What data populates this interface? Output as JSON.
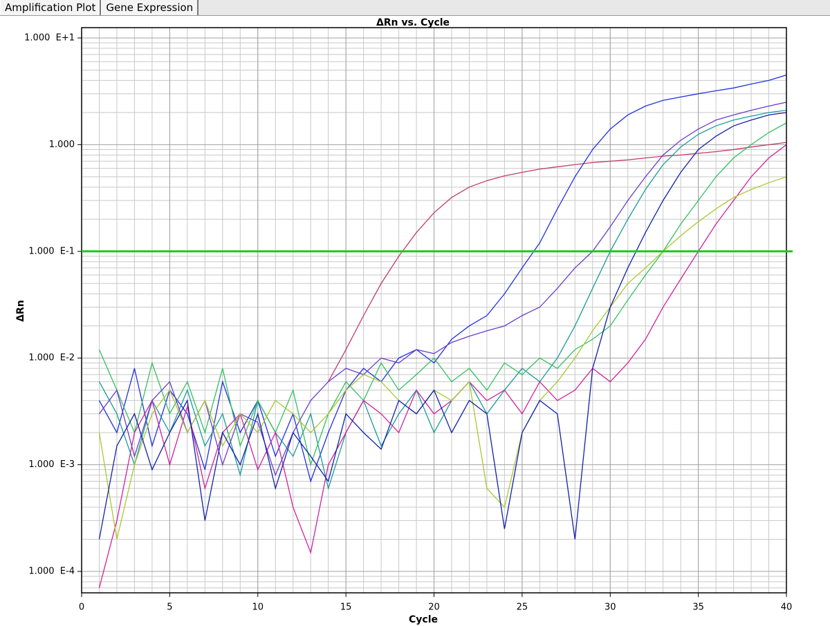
{
  "tabs": [
    "Amplification Plot",
    "Gene Expression"
  ],
  "chart_data": {
    "type": "line",
    "title": "ΔRn vs. Cycle",
    "x_label": "Cycle",
    "y_label": "ΔRn",
    "log_y": true,
    "grid": true,
    "minor_grid": true,
    "threshold": 0.1,
    "threshold_color": "#1ec81e",
    "xlim": [
      0,
      40
    ],
    "xticks": [
      0,
      5,
      10,
      15,
      20,
      25,
      30,
      35,
      40
    ],
    "ylim": [
      6.3e-05,
      12.5
    ],
    "yticks": [
      {
        "value": 0.0001,
        "label": "1.000  E-4"
      },
      {
        "value": 0.001,
        "label": "1.000  E-3"
      },
      {
        "value": 0.01,
        "label": "1.000  E-2"
      },
      {
        "value": 0.1,
        "label": "1.000  E-1"
      },
      {
        "value": 1,
        "label": "1.000"
      },
      {
        "value": 10,
        "label": "1.000  E+1"
      }
    ],
    "x": [
      1,
      2,
      3,
      4,
      5,
      6,
      7,
      8,
      9,
      10,
      11,
      12,
      13,
      14,
      15,
      16,
      17,
      18,
      19,
      20,
      21,
      22,
      23,
      24,
      25,
      26,
      27,
      28,
      29,
      30,
      31,
      32,
      33,
      34,
      35,
      36,
      37,
      38,
      39,
      40
    ],
    "series": [
      {
        "color": "#c03a6a",
        "values": [
          null,
          null,
          null,
          null,
          null,
          null,
          null,
          null,
          null,
          null,
          null,
          null,
          null,
          0.006,
          0.012,
          0.025,
          0.05,
          0.09,
          0.15,
          0.23,
          0.32,
          0.4,
          0.46,
          0.51,
          0.55,
          0.59,
          0.62,
          0.65,
          0.68,
          0.7,
          0.72,
          0.75,
          0.78,
          0.8,
          0.83,
          0.86,
          0.9,
          0.95,
          1.0,
          1.05
        ]
      },
      {
        "color": "#2030e0",
        "values": [
          0.004,
          0.002,
          0.008,
          0.0015,
          0.005,
          0.003,
          0.0009,
          0.006,
          0.002,
          0.004,
          0.0012,
          0.003,
          0.0007,
          0.002,
          0.005,
          0.008,
          0.006,
          0.01,
          0.012,
          0.009,
          0.015,
          0.02,
          0.025,
          0.04,
          0.07,
          0.12,
          0.25,
          0.5,
          0.9,
          1.4,
          1.9,
          2.3,
          2.6,
          2.8,
          3.0,
          3.2,
          3.4,
          3.7,
          4.0,
          4.5
        ]
      },
      {
        "color": "#1a9a9a",
        "values": [
          0.006,
          0.003,
          0.001,
          0.004,
          0.002,
          0.005,
          0.0015,
          0.003,
          0.0008,
          0.004,
          0.002,
          0.0012,
          0.003,
          0.0006,
          0.002,
          0.004,
          0.0015,
          0.003,
          0.005,
          0.002,
          0.004,
          0.006,
          0.003,
          0.005,
          0.008,
          0.006,
          0.01,
          0.02,
          0.045,
          0.1,
          0.2,
          0.38,
          0.65,
          0.95,
          1.25,
          1.5,
          1.7,
          1.85,
          2.0,
          2.1
        ]
      },
      {
        "color": "#30c060",
        "values": [
          0.012,
          0.005,
          0.002,
          0.009,
          0.003,
          0.006,
          0.002,
          0.008,
          0.0015,
          0.004,
          0.002,
          0.005,
          0.001,
          0.003,
          0.006,
          0.004,
          0.009,
          0.005,
          0.007,
          0.01,
          0.006,
          0.008,
          0.005,
          0.009,
          0.007,
          0.01,
          0.008,
          0.012,
          0.015,
          0.02,
          0.035,
          0.06,
          0.1,
          0.18,
          0.3,
          0.5,
          0.75,
          1.0,
          1.3,
          1.6
        ]
      },
      {
        "color": "#d020a0",
        "values": [
          7e-05,
          0.0003,
          0.002,
          0.004,
          0.001,
          0.0035,
          0.0006,
          0.002,
          0.003,
          0.0009,
          0.002,
          0.0004,
          0.00015,
          0.001,
          0.002,
          0.004,
          0.003,
          0.002,
          0.005,
          0.003,
          0.004,
          0.006,
          0.004,
          0.005,
          0.003,
          0.006,
          0.004,
          0.005,
          0.008,
          0.006,
          0.009,
          0.015,
          0.03,
          0.055,
          0.1,
          0.18,
          0.3,
          0.5,
          0.75,
          1.0
        ]
      },
      {
        "color": "#6a3cc8",
        "values": [
          0.003,
          0.005,
          0.0012,
          0.004,
          0.006,
          0.002,
          0.004,
          0.001,
          0.003,
          0.0025,
          0.0008,
          0.002,
          0.004,
          0.006,
          0.008,
          0.007,
          0.01,
          0.009,
          0.012,
          0.011,
          0.014,
          0.016,
          0.018,
          0.02,
          0.025,
          0.03,
          0.045,
          0.07,
          0.1,
          0.17,
          0.3,
          0.5,
          0.8,
          1.1,
          1.4,
          1.7,
          1.9,
          2.1,
          2.3,
          2.5
        ]
      },
      {
        "color": "#a8c830",
        "values": [
          0.002,
          0.0002,
          0.001,
          0.003,
          0.005,
          0.002,
          0.004,
          0.0015,
          0.003,
          0.002,
          0.004,
          0.003,
          0.002,
          0.003,
          0.005,
          0.007,
          0.006,
          0.004,
          0.003,
          0.005,
          0.004,
          0.006,
          0.0006,
          0.0004,
          0.002,
          0.004,
          0.006,
          0.01,
          0.018,
          0.03,
          0.05,
          0.07,
          0.1,
          0.14,
          0.19,
          0.25,
          0.32,
          0.38,
          0.44,
          0.5
        ]
      },
      {
        "color": "#1020a8",
        "values": [
          0.0002,
          0.0015,
          0.003,
          0.0009,
          0.002,
          0.004,
          0.0003,
          0.002,
          0.001,
          0.003,
          0.0006,
          0.002,
          0.0012,
          0.0007,
          0.003,
          0.002,
          0.0014,
          0.004,
          0.003,
          0.005,
          0.002,
          0.004,
          0.003,
          0.00025,
          0.002,
          0.004,
          0.003,
          0.0002,
          0.008,
          0.03,
          0.07,
          0.15,
          0.3,
          0.55,
          0.9,
          1.2,
          1.5,
          1.7,
          1.9,
          2.0
        ]
      }
    ]
  }
}
